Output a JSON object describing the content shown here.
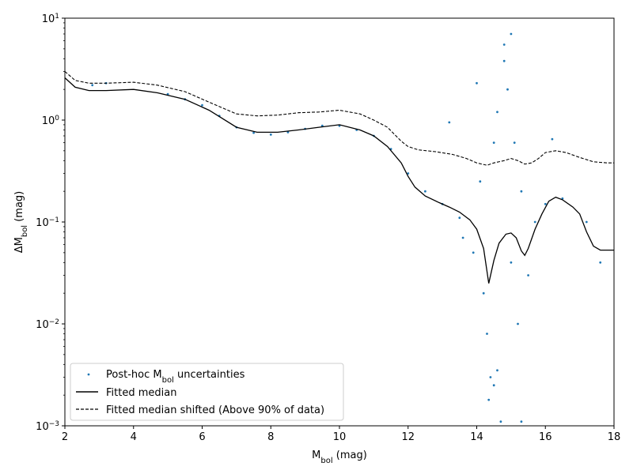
{
  "chart_data": {
    "type": "scatter",
    "xlabel": {
      "main": "M",
      "sub": "bol",
      "rest": " (mag)"
    },
    "ylabel": {
      "pre": "ΔM",
      "sub": "bol",
      "rest": " (mag)"
    },
    "xlim": [
      2,
      18
    ],
    "ylim": [
      0.001,
      10
    ],
    "yscale": "log",
    "grid": false,
    "legend_position": "lower-left",
    "x_ticks": [
      "2",
      "4",
      "6",
      "8",
      "10",
      "12",
      "14",
      "16",
      "18"
    ],
    "y_ticks": [
      {
        "value": 0.001,
        "base": "10",
        "exp": "−3"
      },
      {
        "value": 0.01,
        "base": "10",
        "exp": "−2"
      },
      {
        "value": 0.1,
        "base": "10",
        "exp": "−1"
      },
      {
        "value": 1,
        "base": "10",
        "exp": "0"
      },
      {
        "value": 10,
        "base": "10",
        "exp": "1"
      }
    ],
    "series": [
      {
        "name": "Post-hoc M_bol uncertainties",
        "legend": {
          "pre": "Post-hoc M",
          "sub": "bol",
          "rest": " uncertainties"
        },
        "kind": "scatter",
        "color": "#1f77b4",
        "points": [
          [
            2.8,
            2.2
          ],
          [
            3.2,
            2.3
          ],
          [
            5.0,
            1.8
          ],
          [
            5.5,
            1.6
          ],
          [
            6.0,
            1.4
          ],
          [
            6.5,
            1.1
          ],
          [
            7.0,
            0.85
          ],
          [
            7.5,
            0.75
          ],
          [
            8.0,
            0.72
          ],
          [
            8.5,
            0.76
          ],
          [
            9.0,
            0.82
          ],
          [
            9.5,
            0.88
          ],
          [
            10.0,
            0.88
          ],
          [
            10.5,
            0.8
          ],
          [
            11.0,
            0.7
          ],
          [
            11.5,
            0.52
          ],
          [
            12.0,
            0.3
          ],
          [
            12.5,
            0.2
          ],
          [
            13.0,
            0.15
          ],
          [
            13.5,
            0.11
          ],
          [
            13.2,
            0.95
          ],
          [
            13.6,
            0.07
          ],
          [
            13.9,
            0.05
          ],
          [
            14.2,
            0.02
          ],
          [
            14.3,
            0.008
          ],
          [
            14.4,
            0.003
          ],
          [
            14.5,
            0.0025
          ],
          [
            14.35,
            0.0018
          ],
          [
            14.1,
            0.25
          ],
          [
            14.0,
            2.3
          ],
          [
            14.5,
            0.6
          ],
          [
            14.6,
            1.2
          ],
          [
            14.8,
            3.8
          ],
          [
            14.8,
            5.5
          ],
          [
            14.9,
            2.0
          ],
          [
            15.0,
            7.0
          ],
          [
            15.1,
            0.6
          ],
          [
            15.0,
            0.04
          ],
          [
            15.2,
            0.01
          ],
          [
            15.3,
            0.2
          ],
          [
            15.5,
            0.03
          ],
          [
            15.7,
            0.1
          ],
          [
            16.0,
            0.15
          ],
          [
            16.2,
            0.65
          ],
          [
            16.5,
            0.17
          ],
          [
            17.2,
            0.1
          ],
          [
            17.6,
            0.04
          ],
          [
            14.7,
            0.0011
          ],
          [
            15.3,
            0.0011
          ],
          [
            14.6,
            0.0035
          ]
        ]
      },
      {
        "name": "Fitted median",
        "kind": "line",
        "dash": "solid",
        "color": "#000000",
        "x": [
          2.0,
          2.3,
          2.7,
          3.2,
          4.0,
          4.7,
          5.5,
          6.2,
          7.0,
          7.6,
          8.2,
          8.8,
          9.4,
          10.0,
          10.6,
          11.0,
          11.4,
          11.8,
          12.0,
          12.2,
          12.5,
          12.9,
          13.2,
          13.5,
          13.8,
          14.0,
          14.2,
          14.35,
          14.5,
          14.65,
          14.85,
          15.0,
          15.15,
          15.3,
          15.4,
          15.5,
          15.7,
          15.9,
          16.1,
          16.3,
          16.5,
          16.8,
          17.0,
          17.2,
          17.4,
          17.6,
          18.0
        ],
        "y": [
          2.6,
          2.1,
          1.95,
          1.95,
          2.0,
          1.85,
          1.6,
          1.25,
          0.85,
          0.76,
          0.76,
          0.8,
          0.85,
          0.9,
          0.8,
          0.7,
          0.55,
          0.38,
          0.28,
          0.22,
          0.18,
          0.155,
          0.14,
          0.125,
          0.105,
          0.085,
          0.055,
          0.025,
          0.042,
          0.062,
          0.076,
          0.078,
          0.07,
          0.052,
          0.047,
          0.055,
          0.085,
          0.12,
          0.16,
          0.175,
          0.165,
          0.14,
          0.12,
          0.08,
          0.058,
          0.053,
          0.053
        ]
      },
      {
        "name": "Fitted median shifted (Above 90% of data)",
        "kind": "line",
        "dash": "dashed",
        "color": "#000000",
        "x": [
          2.0,
          2.3,
          2.7,
          3.2,
          4.0,
          4.7,
          5.5,
          6.2,
          7.0,
          7.6,
          8.2,
          8.8,
          9.4,
          10.0,
          10.6,
          11.0,
          11.4,
          11.8,
          12.0,
          12.3,
          12.8,
          13.3,
          13.7,
          14.0,
          14.3,
          14.5,
          14.8,
          15.0,
          15.2,
          15.4,
          15.6,
          15.8,
          16.0,
          16.3,
          16.6,
          17.0,
          17.4,
          17.8,
          18.0
        ],
        "y": [
          3.0,
          2.45,
          2.3,
          2.3,
          2.35,
          2.2,
          1.9,
          1.5,
          1.15,
          1.1,
          1.12,
          1.18,
          1.2,
          1.25,
          1.15,
          1.0,
          0.85,
          0.62,
          0.55,
          0.51,
          0.49,
          0.46,
          0.42,
          0.38,
          0.36,
          0.38,
          0.4,
          0.42,
          0.4,
          0.37,
          0.38,
          0.42,
          0.48,
          0.5,
          0.48,
          0.43,
          0.39,
          0.38,
          0.38
        ]
      }
    ]
  }
}
